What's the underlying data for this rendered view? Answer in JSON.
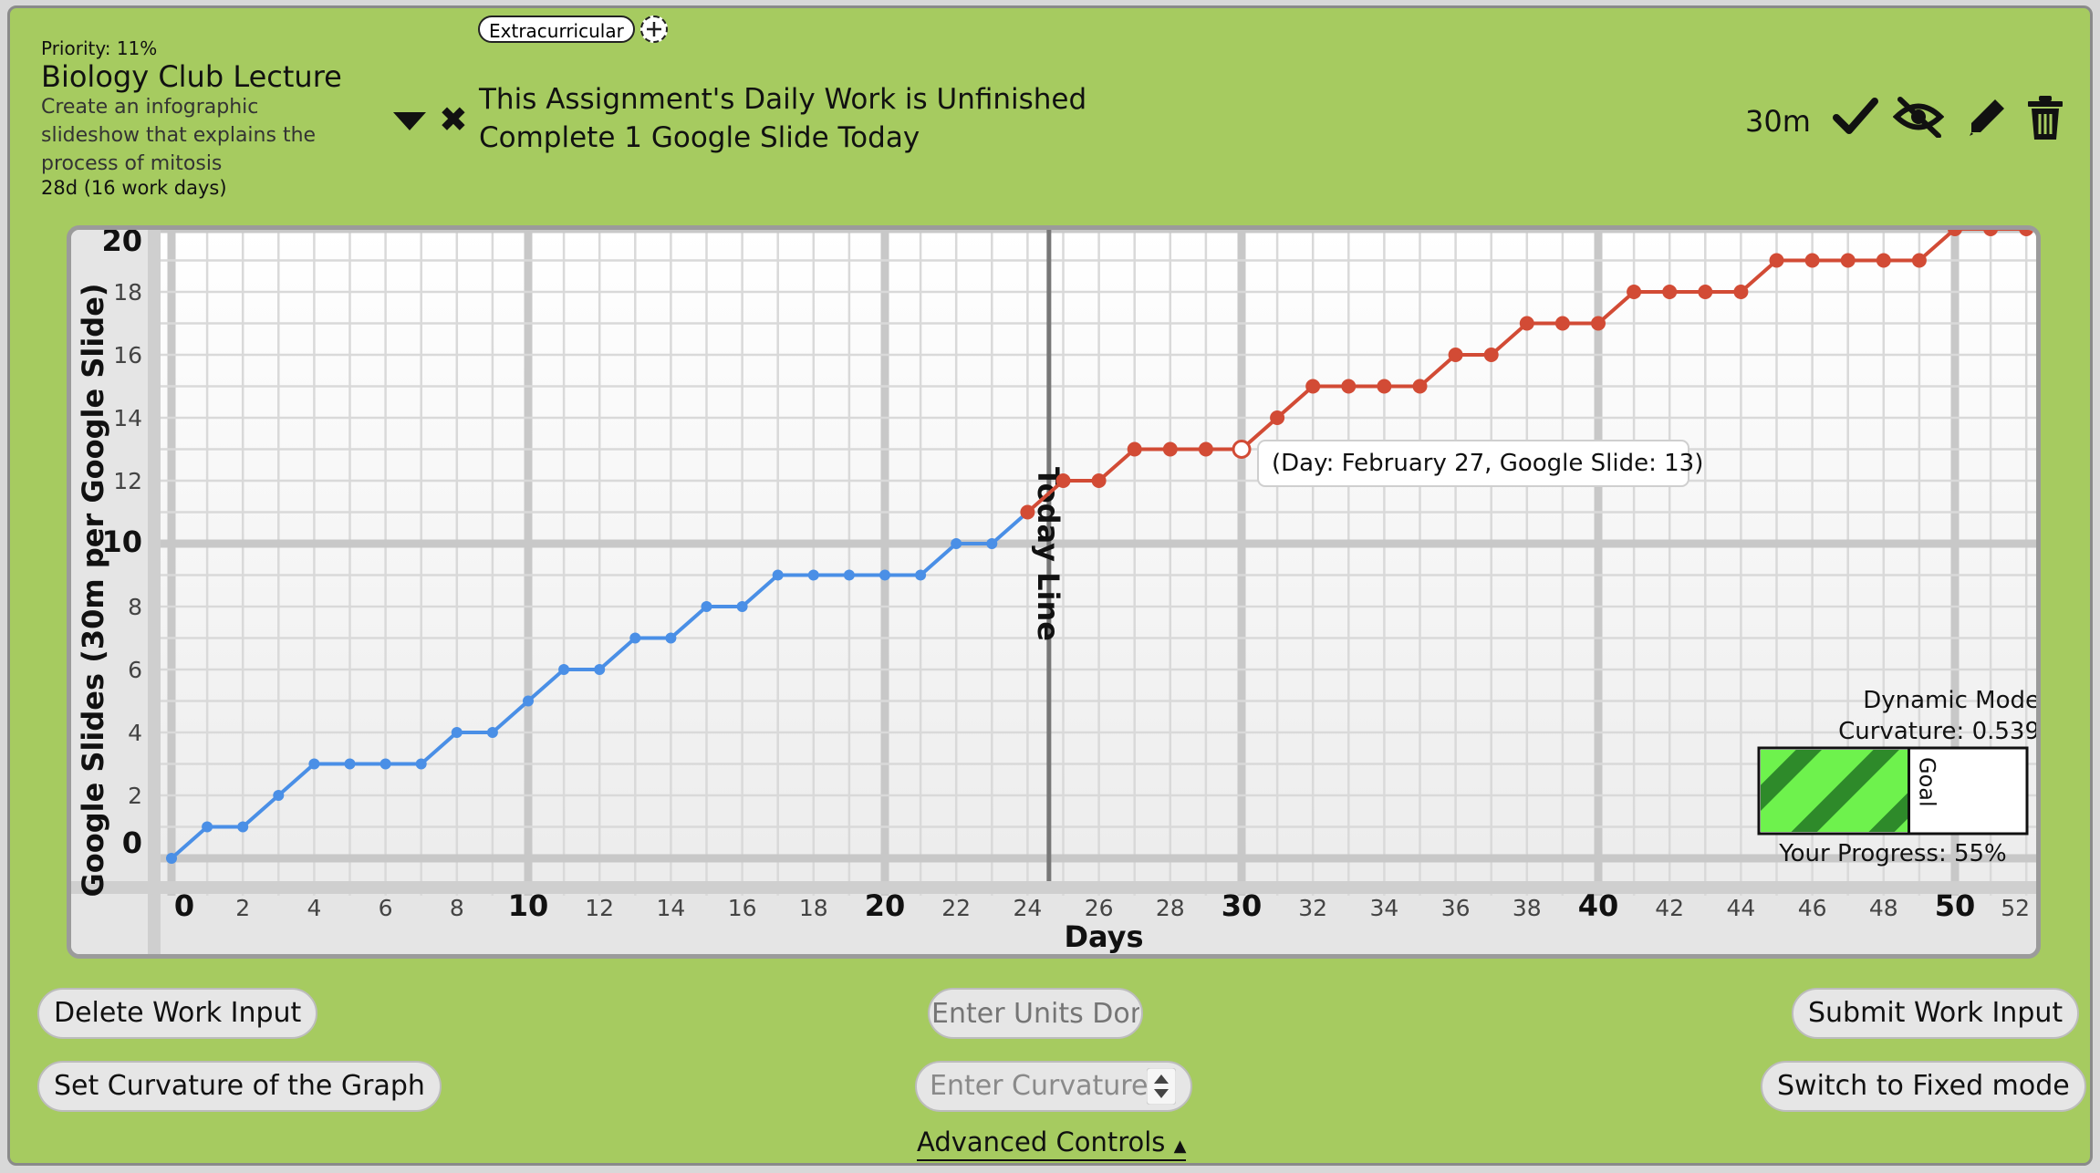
{
  "tag": {
    "label": "Extracurricular"
  },
  "assignment": {
    "priority": "Priority: 11%",
    "title": "Biology Club Lecture",
    "description": "Create an infographic slideshow that explains the process of mitosis",
    "days": "28d (16 work days)"
  },
  "status": {
    "line1": "This Assignment's Daily Work is Unfinished",
    "line2": "Complete 1 Google Slide Today"
  },
  "toolbar": {
    "time": "30m",
    "icons": [
      "collapse-arrow-icon",
      "close-icon",
      "check-icon",
      "eye-slash-icon",
      "pencil-icon",
      "trash-icon"
    ]
  },
  "chart_data": {
    "type": "line",
    "ylabel": "Google Slides (30m per Google Slide)",
    "xlabel": "Days",
    "xlim": [
      0,
      52
    ],
    "ylim": [
      0,
      20
    ],
    "x_ticks": [
      0,
      2,
      4,
      6,
      8,
      10,
      12,
      14,
      16,
      18,
      20,
      22,
      24,
      26,
      28,
      30,
      32,
      34,
      36,
      38,
      40,
      42,
      44,
      46,
      48,
      50,
      52
    ],
    "y_ticks": [
      0,
      2,
      4,
      6,
      8,
      10,
      12,
      14,
      16,
      18,
      20
    ],
    "today_line": {
      "label": "Today Line",
      "x": 24.6
    },
    "series": [
      {
        "color": "#4a8fe6",
        "points": [
          [
            0,
            0
          ],
          [
            1,
            1
          ],
          [
            2,
            1
          ],
          [
            3,
            2
          ],
          [
            4,
            3
          ],
          [
            5,
            3
          ],
          [
            6,
            3
          ],
          [
            7,
            3
          ],
          [
            8,
            4
          ],
          [
            9,
            4
          ],
          [
            10,
            5
          ],
          [
            11,
            6
          ],
          [
            12,
            6
          ],
          [
            13,
            7
          ],
          [
            14,
            7
          ],
          [
            15,
            8
          ],
          [
            16,
            8
          ],
          [
            17,
            9
          ],
          [
            18,
            9
          ],
          [
            19,
            9
          ],
          [
            20,
            9
          ],
          [
            21,
            9
          ],
          [
            22,
            10
          ],
          [
            23,
            10
          ],
          [
            24,
            11
          ]
        ]
      },
      {
        "color": "#d24b35",
        "points": [
          [
            24,
            11
          ],
          [
            25,
            12
          ],
          [
            26,
            12
          ],
          [
            27,
            13
          ],
          [
            28,
            13
          ],
          [
            29,
            13
          ],
          [
            30,
            13
          ],
          [
            31,
            14
          ],
          [
            32,
            15
          ],
          [
            33,
            15
          ],
          [
            34,
            15
          ],
          [
            35,
            15
          ],
          [
            36,
            16
          ],
          [
            37,
            16
          ],
          [
            38,
            17
          ],
          [
            39,
            17
          ],
          [
            40,
            17
          ],
          [
            41,
            18
          ],
          [
            42,
            18
          ],
          [
            43,
            18
          ],
          [
            44,
            18
          ],
          [
            45,
            19
          ],
          [
            46,
            19
          ],
          [
            47,
            19
          ],
          [
            48,
            19
          ],
          [
            49,
            19
          ],
          [
            50,
            20
          ],
          [
            51,
            20
          ],
          [
            52,
            20
          ]
        ]
      }
    ],
    "highlight_point": {
      "x": 30,
      "y": 13
    },
    "tooltip": "(Day: February 27, Google Slide: 13)",
    "mode_title": "Dynamic Mode",
    "curvature_label": "Curvature: 0.539",
    "progress": {
      "label": "Your Progress: 55%",
      "value": 55,
      "goal_label": "Goal",
      "fill": "#6ef24d",
      "stripe": "#2e8a2a"
    }
  },
  "controls": {
    "delete_work": "Delete Work Input",
    "units_placeholder": "Enter Units Done",
    "submit_work": "Submit Work Input",
    "set_curvature": "Set Curvature of the Graph",
    "curvature_placeholder": "Enter Curvature",
    "switch_mode": "Switch to Fixed mode",
    "advanced": "Advanced Controls"
  }
}
